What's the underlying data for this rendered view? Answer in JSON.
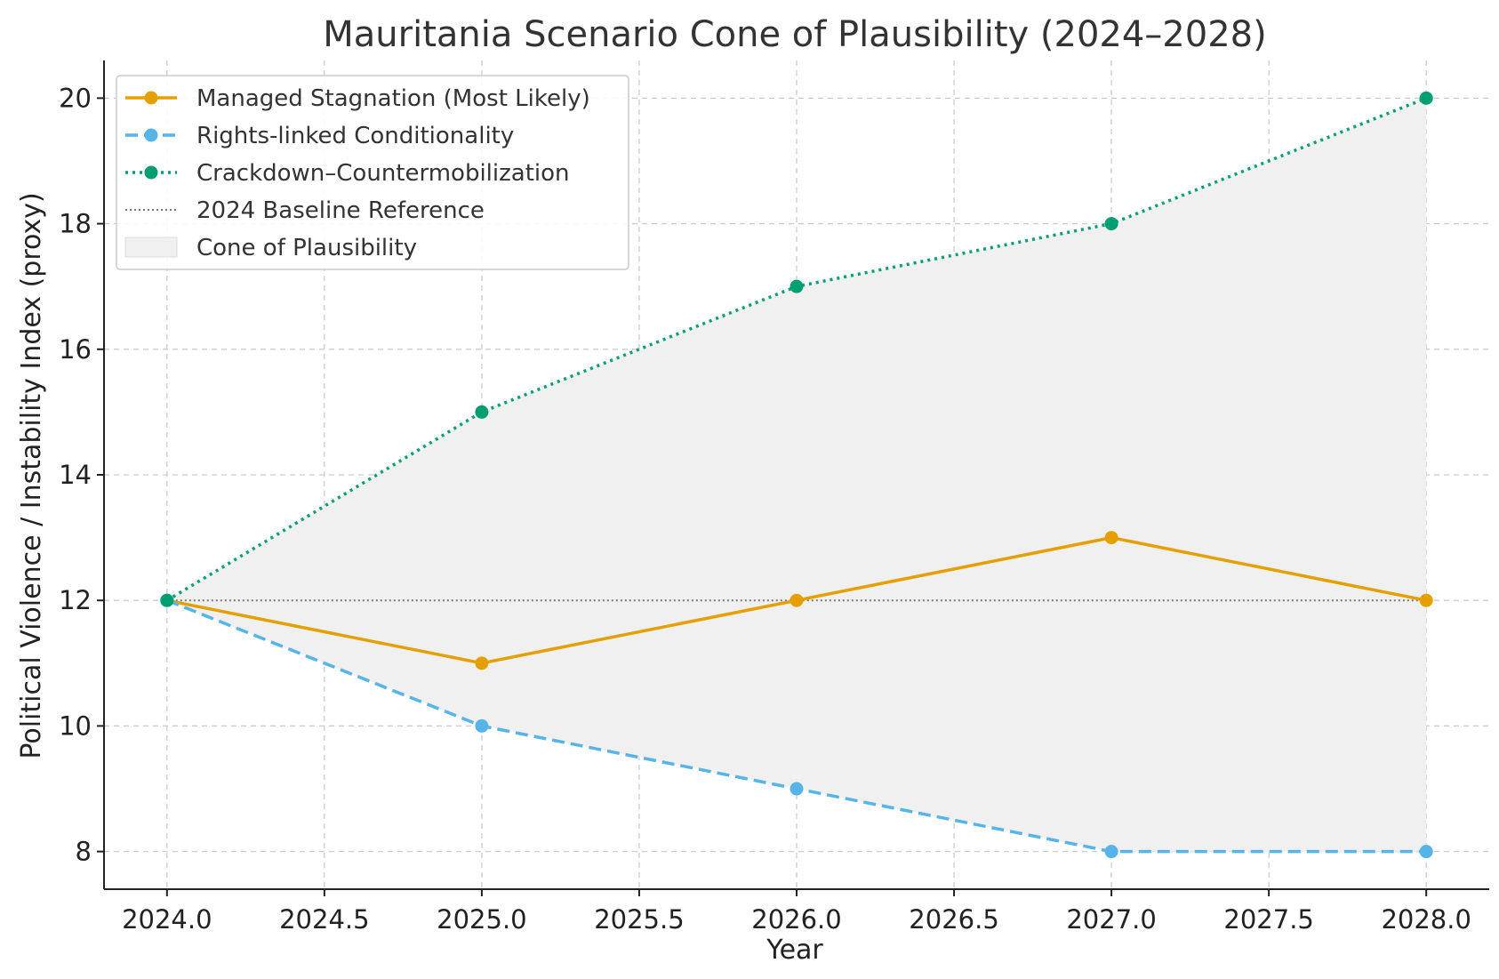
{
  "chart_data": {
    "type": "line",
    "title": "Mauritania Scenario Cone of Plausibility (2024–2028)",
    "xlabel": "Year",
    "ylabel": "Political Violence / Instability Index (proxy)",
    "x": [
      2024,
      2025,
      2026,
      2027,
      2028
    ],
    "xlim": [
      2023.8,
      2028.2
    ],
    "ylim": [
      7.4,
      20.6
    ],
    "xticks": [
      "2024.0",
      "2024.5",
      "2025.0",
      "2025.5",
      "2026.0",
      "2026.5",
      "2027.0",
      "2027.5",
      "2028.0"
    ],
    "yticks": [
      "8",
      "10",
      "12",
      "14",
      "16",
      "18",
      "20"
    ],
    "grid": true,
    "legend_position": "top-left",
    "series": [
      {
        "name": "Managed Stagnation (Most Likely)",
        "values": [
          12,
          11,
          12,
          13,
          12
        ],
        "color": "#E69F00",
        "style": "solid",
        "marker": true
      },
      {
        "name": "Rights-linked Conditionality",
        "values": [
          12,
          10,
          9,
          8,
          8
        ],
        "color": "#56B4E9",
        "style": "dashed",
        "marker": true
      },
      {
        "name": "Crackdown–Countermobilization",
        "values": [
          12,
          15,
          17,
          18,
          20
        ],
        "color": "#009E73",
        "style": "dotted",
        "marker": true
      }
    ],
    "baseline": {
      "name": "2024 Baseline Reference",
      "value": 12,
      "color": "#777777",
      "style": "dotted"
    },
    "band": {
      "name": "Cone of Plausibility",
      "color": "#f0f0f0"
    }
  }
}
